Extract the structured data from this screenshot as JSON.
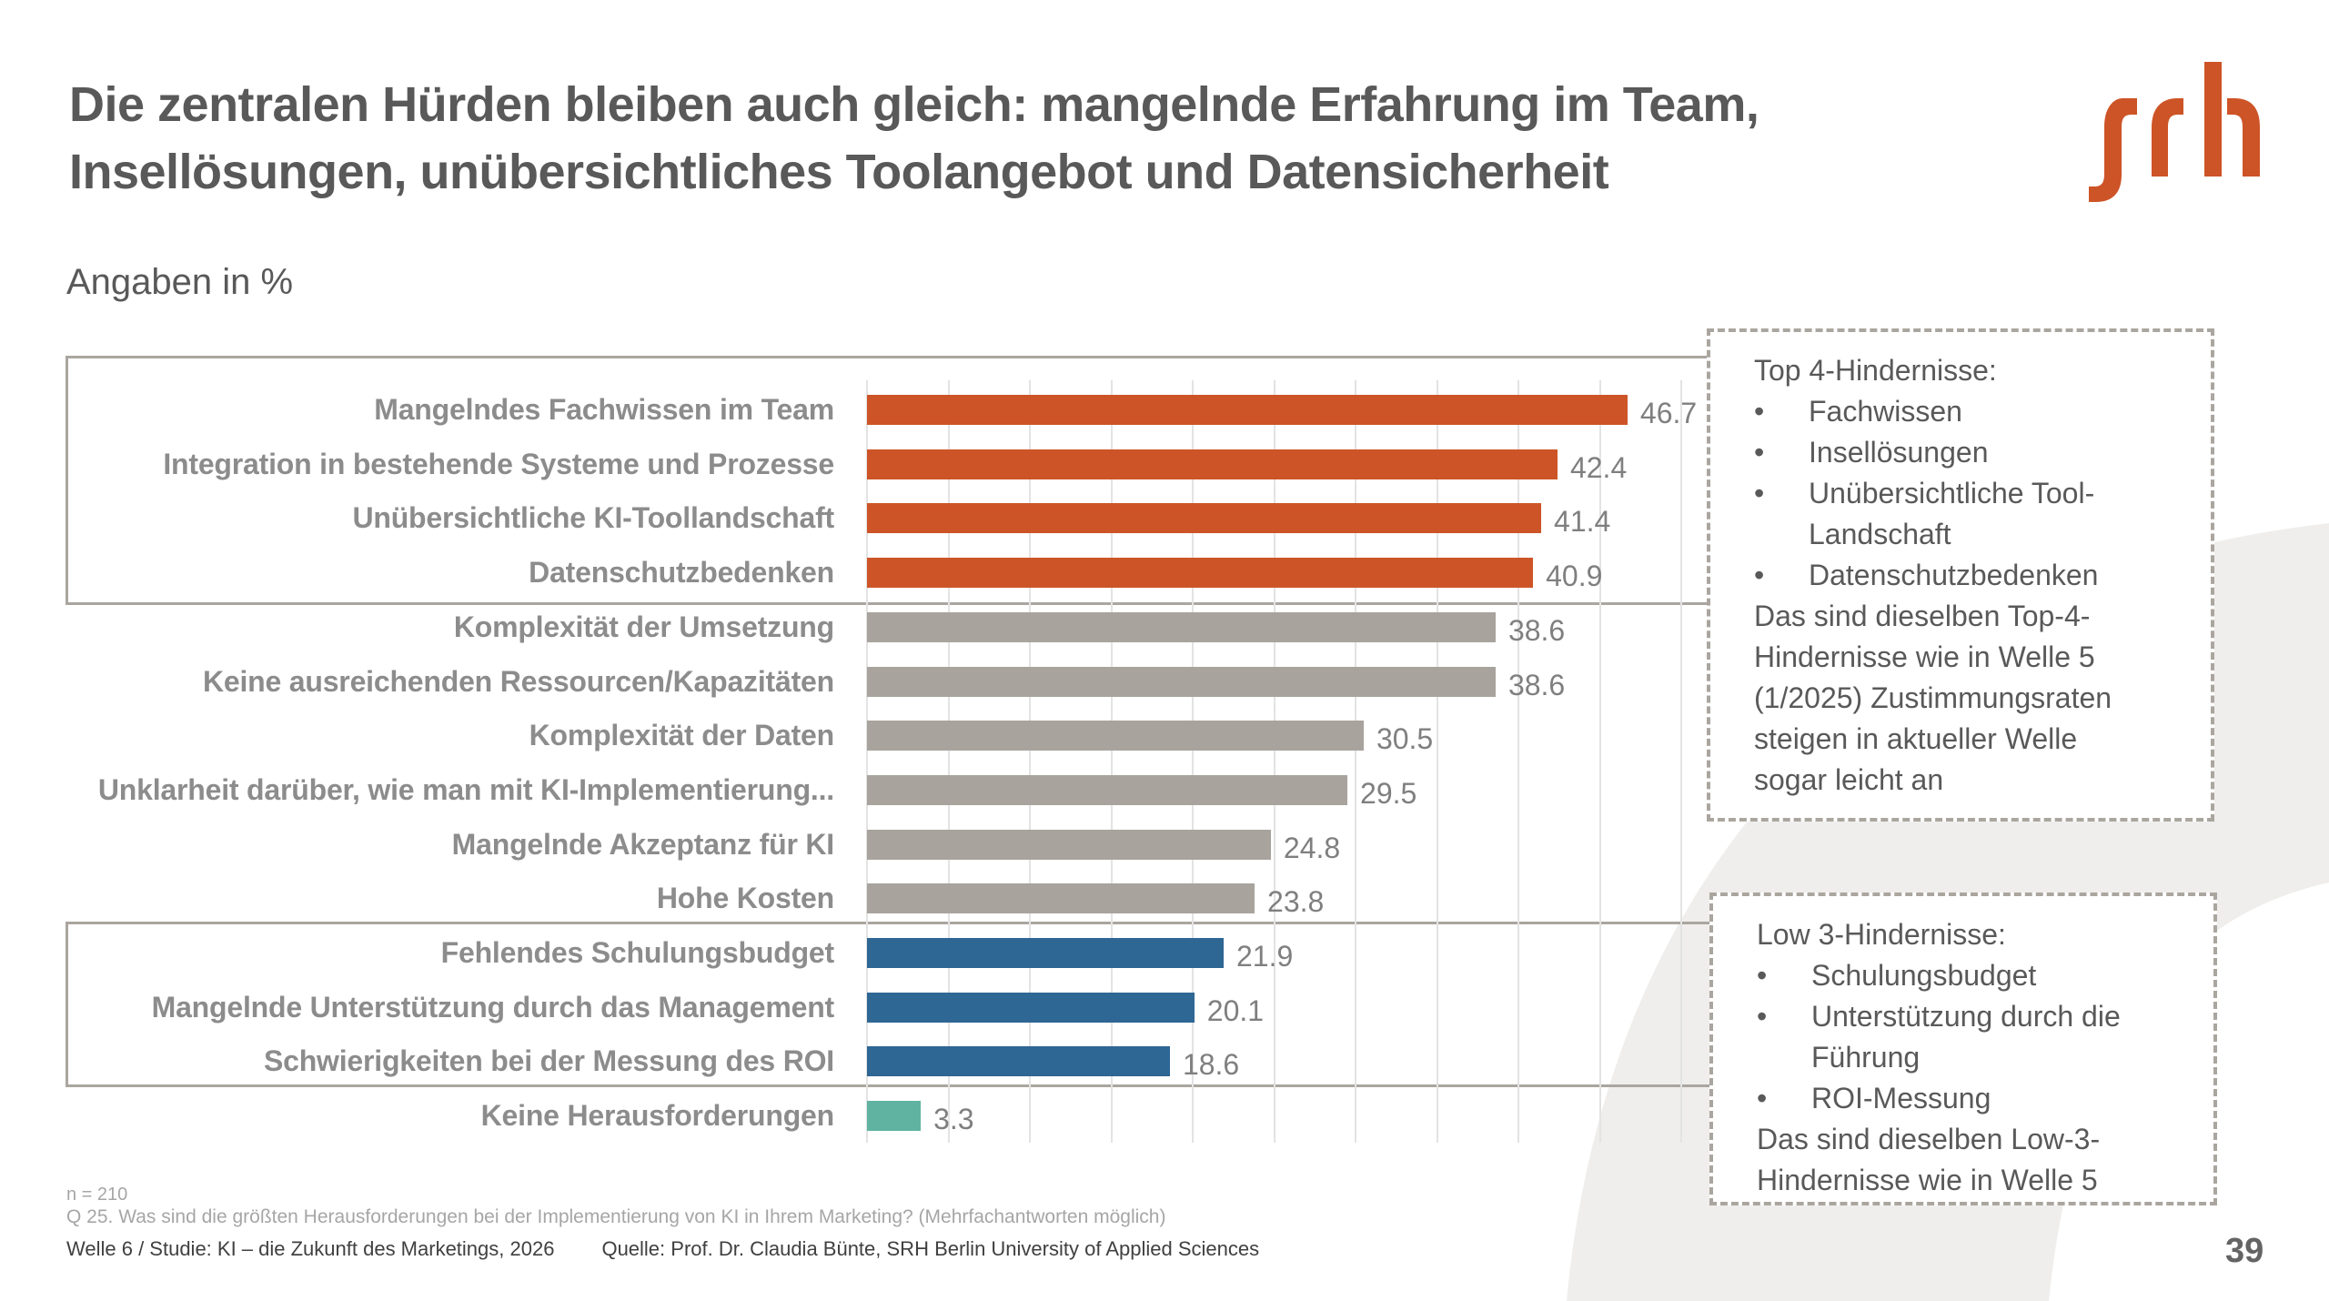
{
  "header": {
    "title_lines": [
      "Die zentralen Hürden bleiben auch gleich: mangelnde Erfahrung im Team,",
      "Insellösungen, unübersichtliches Toolangebot und Datensicherheit"
    ],
    "subtitle": "Angaben in %",
    "logo_text": "srh"
  },
  "colors": {
    "top": "#cd5427",
    "middle": "#a8a39d",
    "low": "#2e6694",
    "none": "#5fb3a0",
    "logo": "#cd5427",
    "text": "#595959"
  },
  "chart_data": {
    "type": "bar",
    "orientation": "horizontal",
    "title": "",
    "xlabel": "",
    "ylabel": "",
    "unit": "%",
    "xlim": [
      0,
      50
    ],
    "grid_step": 5,
    "grid": true,
    "categories": [
      "Mangelndes Fachwissen im Team",
      "Integration in bestehende Systeme und Prozesse",
      "Unübersichtliche KI-Toollandschaft",
      "Datenschutzbedenken",
      "Komplexität der Umsetzung",
      "Keine ausreichenden Ressourcen/Kapazitäten",
      "Komplexität der Daten",
      "Unklarheit darüber, wie man mit KI-Implementierung...",
      "Mangelnde Akzeptanz für KI",
      "Hohe Kosten",
      "Fehlendes Schulungsbudget",
      "Mangelnde Unterstützung durch das Management",
      "Schwierigkeiten bei der Messung des ROI",
      "Keine Herausforderungen"
    ],
    "values": [
      46.7,
      42.4,
      41.4,
      40.9,
      38.6,
      38.6,
      30.5,
      29.5,
      24.8,
      23.8,
      21.9,
      20.1,
      18.6,
      3.3
    ],
    "value_labels": [
      "46.7",
      "42.4",
      "41.4",
      "40.9",
      "38.6",
      "38.6",
      "30.5",
      "29.5",
      "24.8",
      "23.8",
      "21.9",
      "20.1",
      "18.6",
      "3.3"
    ],
    "groups": [
      "top",
      "top",
      "top",
      "top",
      "middle",
      "middle",
      "middle",
      "middle",
      "middle",
      "middle",
      "low",
      "low",
      "low",
      "none"
    ]
  },
  "notes": {
    "top": {
      "heading": "Top 4-Hindernisse:",
      "bullets": [
        [
          "Fachwissen"
        ],
        [
          "Insellösungen"
        ],
        [
          "Unübersichtliche Tool-",
          "Landschaft"
        ],
        [
          "Datenschutzbedenken"
        ]
      ],
      "text_lines": [
        "Das sind dieselben Top-4-",
        "Hindernisse wie in Welle 5",
        "(1/2025) Zustimmungsraten",
        "steigen in aktueller Welle",
        "sogar leicht an"
      ]
    },
    "low": {
      "heading": "Low 3-Hindernisse:",
      "bullets": [
        [
          "Schulungsbudget"
        ],
        [
          "Unterstützung durch die",
          "Führung"
        ],
        [
          "ROI-Messung"
        ]
      ],
      "text_lines": [
        "Das sind dieselben Low-3-",
        "Hindernisse wie in Welle 5"
      ]
    }
  },
  "footer": {
    "sample": "n = 210",
    "question": "Q 25. Was sind die größten Herausforderungen bei der Implementierung von KI in Ihrem Marketing? (Mehrfachantworten möglich)",
    "study": "Welle 6 / Studie: KI – die Zukunft des Marketings, 2026",
    "source": "Quelle: Prof. Dr. Claudia Bünte, SRH Berlin University of Applied Sciences"
  },
  "page_number": "39"
}
